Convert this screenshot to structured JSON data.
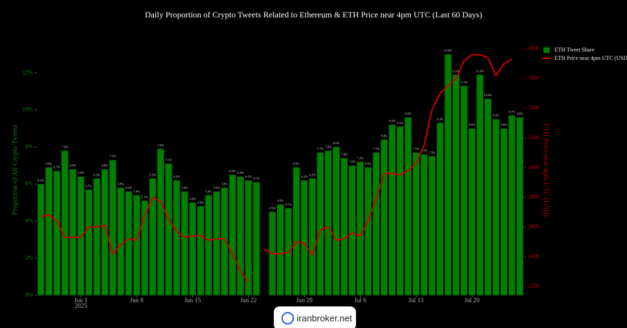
{
  "chart_data": {
    "type": "bar_line",
    "title": "Daily Proportion of Crypto Tweets Related to Ethereum & ETH Price near 4pm UTC (Last 60 Days)",
    "ylabel": "Proportion of All Crypto Tweets",
    "y2label": "ETH Price near 4pm UTC (USD)",
    "x": [
      "2025-05-27",
      "2025-05-28",
      "2025-05-29",
      "2025-05-30",
      "2025-05-31",
      "2025-06-01",
      "2025-06-02",
      "2025-06-03",
      "2025-06-04",
      "2025-06-05",
      "2025-06-06",
      "2025-06-07",
      "2025-06-08",
      "2025-06-09",
      "2025-06-10",
      "2025-06-11",
      "2025-06-12",
      "2025-06-13",
      "2025-06-14",
      "2025-06-15",
      "2025-06-16",
      "2025-06-17",
      "2025-06-18",
      "2025-06-19",
      "2025-06-20",
      "2025-06-21",
      "2025-06-22",
      "2025-06-23",
      "2025-06-24",
      "2025-06-25",
      "2025-06-26",
      "2025-06-27",
      "2025-06-28",
      "2025-06-29",
      "2025-06-30",
      "2025-07-01",
      "2025-07-02",
      "2025-07-03",
      "2025-07-04",
      "2025-07-05",
      "2025-07-06",
      "2025-07-07",
      "2025-07-08",
      "2025-07-09",
      "2025-07-10",
      "2025-07-11",
      "2025-07-12",
      "2025-07-13",
      "2025-07-14",
      "2025-07-15",
      "2025-07-16",
      "2025-07-17",
      "2025-07-18",
      "2025-07-19",
      "2025-07-20",
      "2025-07-21",
      "2025-07-22",
      "2025-07-23",
      "2025-07-24",
      "2025-07-25",
      "2025-07-26"
    ],
    "xlim": [
      "2025-05-26T12:00:00",
      "2025-07-26T12:00:00"
    ],
    "xticks": [
      {
        "value": "2025-06-01",
        "label": "Jun 1"
      },
      {
        "value": "2025-06-08",
        "label": "Jun 8"
      },
      {
        "value": "2025-06-15",
        "label": "Jun 15"
      },
      {
        "value": "2025-06-22",
        "label": "Jun 22"
      },
      {
        "value": "2025-06-29",
        "label": "Jun 29"
      },
      {
        "value": "2025-07-06",
        "label": "Jul 6"
      },
      {
        "value": "2025-07-13",
        "label": "Jul 13"
      },
      {
        "value": "2025-07-20",
        "label": "Jul 20"
      }
    ],
    "x_year_label": "2025",
    "ylim": [
      0,
      13.3
    ],
    "yticks": [
      {
        "value": 0,
        "label": "0%"
      },
      {
        "value": 2,
        "label": "2%"
      },
      {
        "value": 4,
        "label": "4%"
      },
      {
        "value": 6,
        "label": "6%"
      },
      {
        "value": 8,
        "label": "8%"
      },
      {
        "value": 10,
        "label": "10%"
      },
      {
        "value": 12,
        "label": "12%"
      }
    ],
    "y2lim": [
      2140,
      3800
    ],
    "y2ticks": [
      2200,
      2400,
      2600,
      2800,
      3000,
      3200,
      3400,
      3600,
      3800
    ],
    "legend": "upper right",
    "series": [
      {
        "name": "ETH Tweet Share",
        "color": "#008000",
        "type": "bar",
        "values": [
          6.0,
          6.9,
          6.7,
          7.8,
          6.8,
          6.4,
          5.7,
          6.3,
          6.8,
          7.3,
          5.8,
          5.6,
          5.4,
          5.1,
          6.3,
          7.9,
          7.1,
          6.2,
          5.6,
          5.0,
          4.8,
          5.4,
          5.6,
          5.8,
          6.5,
          6.4,
          6.2,
          6.1,
          null,
          4.5,
          4.9,
          4.7,
          6.9,
          6.2,
          6.3,
          7.7,
          7.8,
          8.0,
          7.4,
          7.0,
          7.2,
          6.9,
          7.7,
          8.4,
          9.2,
          9.1,
          9.6,
          7.7,
          7.6,
          7.5,
          9.3,
          13.0,
          11.9,
          11.3,
          9.0,
          11.9,
          10.6,
          9.5,
          9.0,
          9.7,
          9.6
        ],
        "value_labels": [
          "6.0%",
          "6.9%",
          "6.7%",
          "7.8%",
          "6.8%",
          "6.4%",
          "5.7%",
          "6.3%",
          "6.8%",
          "7.3%",
          "5.8%",
          "5.6%",
          "5.4%",
          "5.1%",
          "6.3%",
          "7.9%",
          "7.1%",
          "6.2%",
          "5.6%",
          "5.0%",
          "4.8%",
          "5.4%",
          "5.6%",
          "5.8%",
          "6.5%",
          "6.4%",
          "6.2%",
          "6.1%",
          null,
          "4.5%",
          "4.9%",
          "4.7%",
          "6.9%",
          "6.2%",
          "6.3%",
          "7.7%",
          "7.8%",
          "8.0%",
          "7.4%",
          "7.0%",
          "7.2%",
          "6.9%",
          "7.7%",
          "8.4%",
          "9.2%",
          "9.1%",
          "9.6%",
          "7.7%",
          "7.6%",
          "7.5%",
          "9.3%",
          "13.0%",
          "11.9%",
          "11.3%",
          "9.0%",
          "11.9%",
          "10.6%",
          "9.5%",
          "9.0%",
          "9.7%",
          "9.6%"
        ]
      },
      {
        "name": "ETH Price near 4pm UTC (USD)",
        "color": "#d00000",
        "type": "line",
        "axis": "y2",
        "values": [
          2670,
          2680,
          2640,
          2530,
          2530,
          2530,
          2600,
          2600,
          2610,
          2420,
          2480,
          2520,
          2510,
          2680,
          2800,
          2770,
          2650,
          2570,
          2530,
          2540,
          2540,
          2510,
          2520,
          2520,
          2420,
          2300,
          2230,
          null,
          2450,
          2420,
          2420,
          2430,
          2500,
          2490,
          2410,
          2580,
          2600,
          2510,
          2520,
          2560,
          2540,
          2640,
          2790,
          2960,
          2960,
          2950,
          2980,
          3030,
          3150,
          3390,
          3500,
          3550,
          3600,
          3720,
          3760,
          3760,
          3740,
          3620,
          3700,
          3730,
          null
        ]
      }
    ]
  },
  "watermark": "iranbroker.net"
}
